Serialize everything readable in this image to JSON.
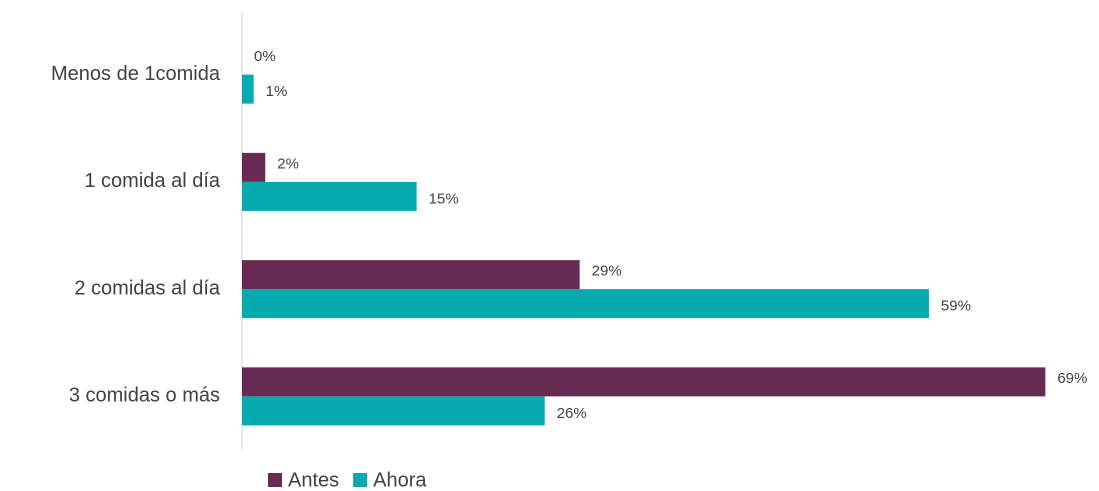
{
  "chart_data": {
    "type": "hbar",
    "categories": [
      "Menos de 1comida",
      "1 comida al día",
      "2 comidas al día",
      "3 comidas o más"
    ],
    "series": [
      {
        "name": "Antes",
        "color": "#662a53",
        "values": [
          0,
          2,
          29,
          69
        ],
        "value_labels": [
          "0%",
          "2%",
          "29%",
          "69%"
        ]
      },
      {
        "name": "Ahora",
        "color": "#06a9ad",
        "values": [
          1,
          15,
          59,
          26
        ],
        "value_labels": [
          "1%",
          "15%",
          "59%",
          "26%"
        ]
      }
    ],
    "xlim": [
      0,
      70
    ],
    "legend": "bottom"
  }
}
